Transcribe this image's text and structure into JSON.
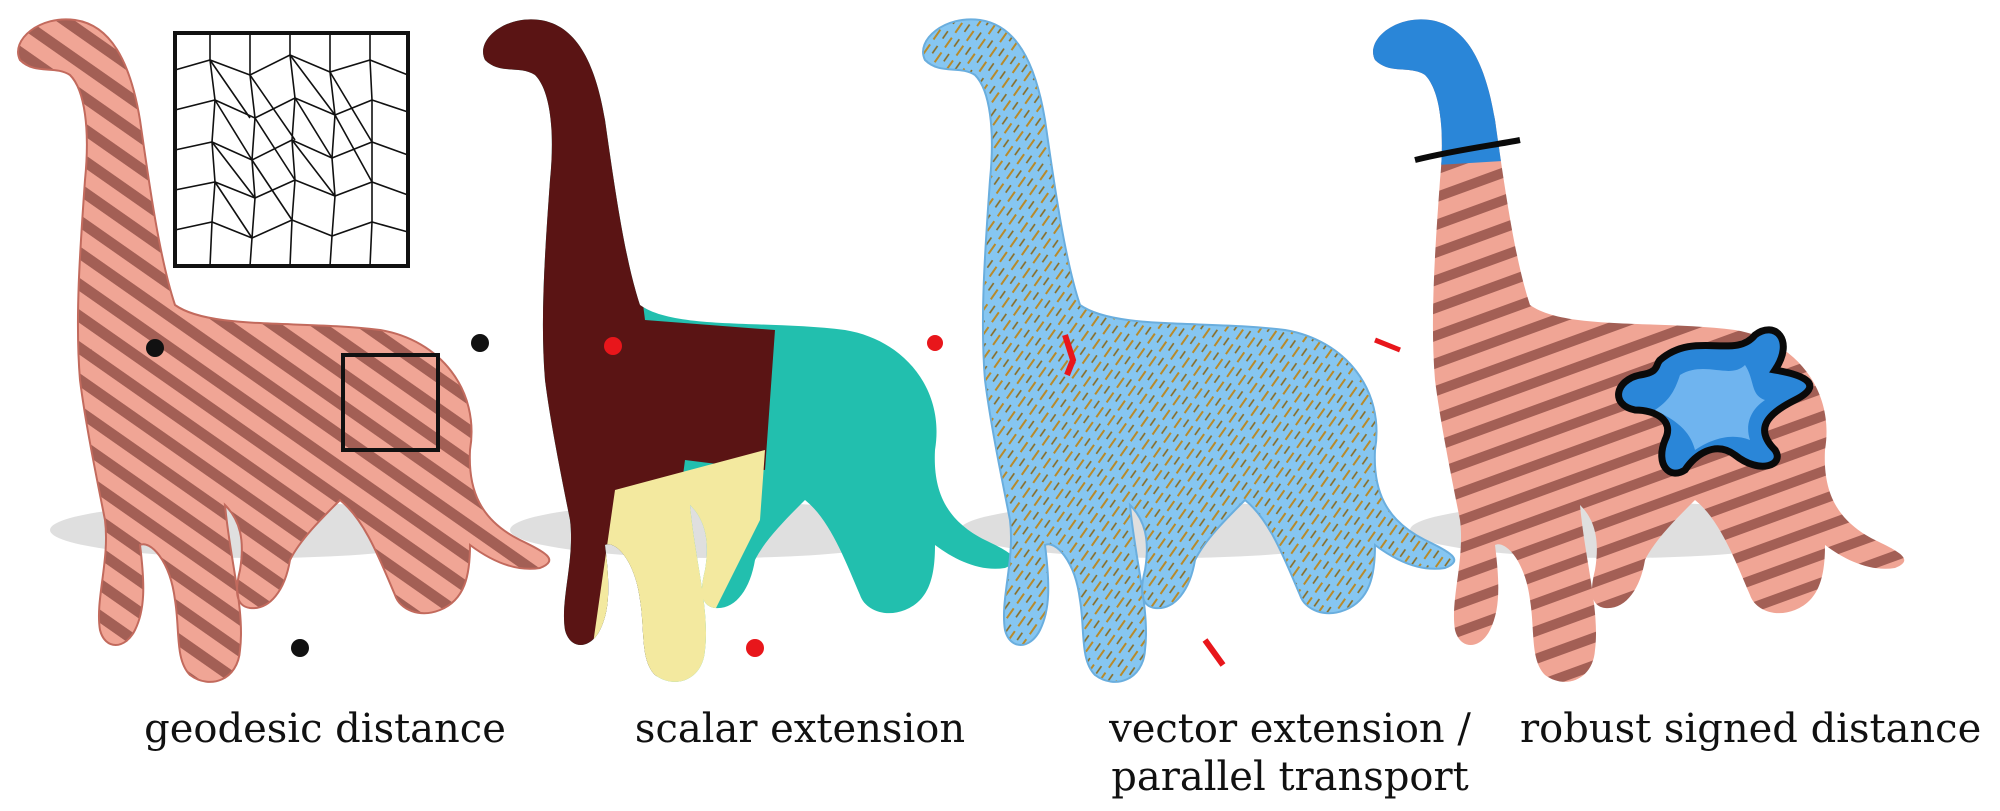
{
  "panels": [
    {
      "id": "geodesic",
      "caption_lines": [
        "geodesic distance"
      ],
      "colors": {
        "body": "#e9897a",
        "stripe_light": "#f4b3a6",
        "stripe_dark": "#a86258",
        "marker": "#111111"
      },
      "marker_count": 3,
      "inset": "mesh-detail"
    },
    {
      "id": "scalar",
      "caption_lines": [
        "scalar extension"
      ],
      "colors": {
        "region_neck": "#5a1414",
        "region_body": "#23bfae",
        "region_leg": "#f5eba0",
        "marker": "#e8161b"
      },
      "marker_count": 3
    },
    {
      "id": "vector",
      "caption_lines": [
        "vector extension /",
        "parallel transport"
      ],
      "colors": {
        "body": "#7fc2ef",
        "hair": "#b88a2a",
        "marker": "#e8161b"
      },
      "marker_count": 3
    },
    {
      "id": "signed",
      "caption_lines": [
        "robust signed distance"
      ],
      "colors": {
        "body": "#e9897a",
        "stripe_dark": "#a86258",
        "region_inside": "#2a86d8",
        "region_inside_light": "#6fb4ef",
        "boundary": "#0a0a0a"
      }
    }
  ]
}
